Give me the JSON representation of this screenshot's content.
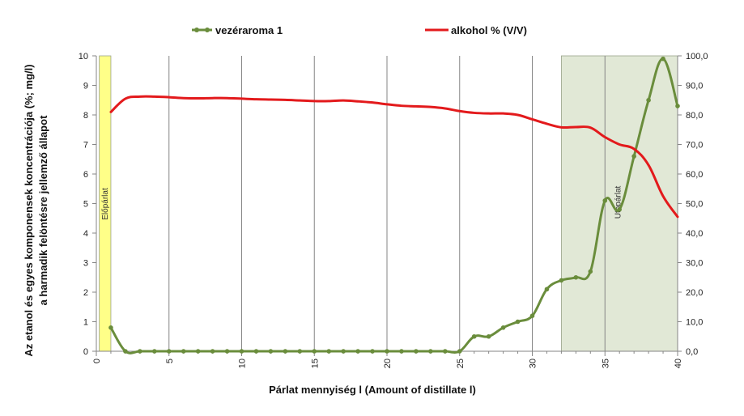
{
  "chart_data": {
    "type": "line",
    "xlabel": "Párlat mennyiség l (Amount of distillate  l)",
    "ylabel_lines": [
      "Az etanol és egyes komponensek koncentrációja (%; mg/l)",
      "a harmadik felöntésre jellemző állapot"
    ],
    "x_range": [
      0,
      40
    ],
    "x_ticks": [
      "0",
      "5",
      "10",
      "15",
      "20",
      "25",
      "30",
      "35",
      "40"
    ],
    "y_left_range": [
      0,
      10
    ],
    "y_left_ticks": [
      "0",
      "1",
      "2",
      "3",
      "4",
      "5",
      "6",
      "7",
      "8",
      "9",
      "10"
    ],
    "y_right_range": [
      0,
      100
    ],
    "y_right_ticks": [
      "0,0",
      "10,0",
      "20,0",
      "30,0",
      "40,0",
      "50,0",
      "60,0",
      "70,0",
      "80,0",
      "90,0",
      "100,0"
    ],
    "grid": "vertical",
    "legend_position": "top",
    "regions": [
      {
        "label": "Előpárlat",
        "x_start": 0.2,
        "x_end": 1.0,
        "color": "#ffff88"
      },
      {
        "label": "Utópárlat",
        "x_start": 32.0,
        "x_end": 40.0,
        "color": "#e1e8d6"
      }
    ],
    "series": [
      {
        "name": "vezéraroma 1",
        "axis": "left",
        "color": "#6a8d3c",
        "markers": true,
        "x": [
          1,
          2,
          3,
          4,
          5,
          6,
          7,
          8,
          9,
          10,
          11,
          12,
          13,
          14,
          15,
          16,
          17,
          18,
          19,
          20,
          21,
          22,
          23,
          24,
          25,
          26,
          27,
          28,
          29,
          30,
          31,
          32,
          33,
          34,
          35,
          36,
          37,
          38,
          39,
          40
        ],
        "y": [
          0.8,
          0,
          0,
          0,
          0,
          0,
          0,
          0,
          0,
          0,
          0,
          0,
          0,
          0,
          0,
          0,
          0,
          0,
          0,
          0,
          0,
          0,
          0,
          0,
          0,
          0.5,
          0.5,
          0.8,
          1.0,
          1.2,
          2.1,
          2.4,
          2.5,
          2.7,
          5.1,
          4.8,
          6.6,
          8.5,
          9.9,
          8.3
        ]
      },
      {
        "name": "alkohol % (V/V)",
        "axis": "right",
        "color": "#e31a1c",
        "markers": false,
        "x": [
          1,
          2,
          3,
          4,
          5,
          6,
          7,
          8,
          9,
          10,
          11,
          12,
          13,
          14,
          15,
          16,
          17,
          18,
          19,
          20,
          21,
          22,
          23,
          24,
          25,
          26,
          27,
          28,
          29,
          30,
          31,
          32,
          33,
          34,
          35,
          36,
          37,
          38,
          39,
          40
        ],
        "y": [
          81.0,
          85.5,
          86.2,
          86.2,
          86.0,
          85.7,
          85.6,
          85.7,
          85.7,
          85.5,
          85.3,
          85.2,
          85.1,
          84.9,
          84.7,
          84.7,
          84.9,
          84.6,
          84.2,
          83.6,
          83.1,
          82.9,
          82.7,
          82.2,
          81.3,
          80.7,
          80.5,
          80.5,
          80.0,
          78.5,
          77.0,
          75.8,
          75.9,
          75.7,
          72.5,
          70.0,
          68.5,
          63.0,
          52.5,
          45.5
        ]
      }
    ]
  }
}
